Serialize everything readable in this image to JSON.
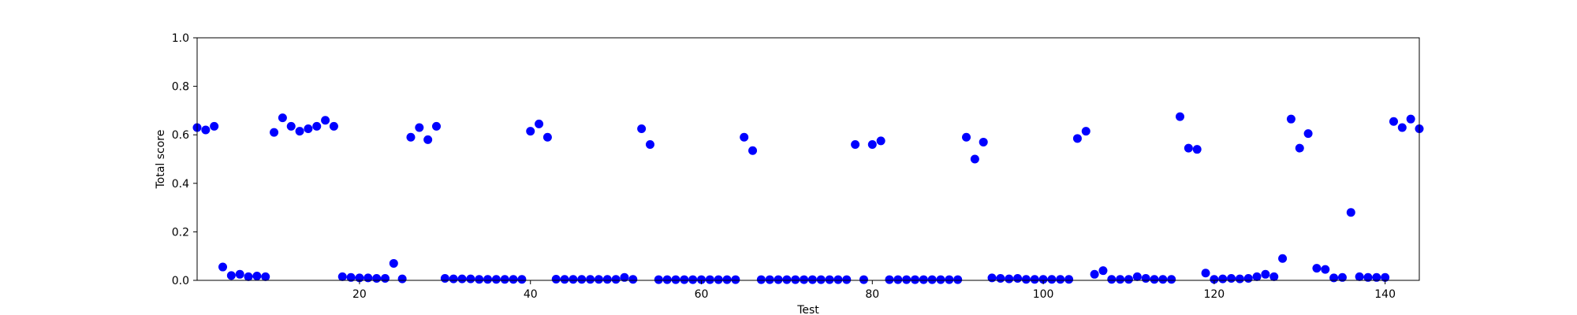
{
  "chart_data": {
    "type": "scatter",
    "title": "",
    "xlabel": "Test",
    "ylabel": "Total score",
    "xlim": [
      1,
      144
    ],
    "ylim": [
      0.0,
      1.0
    ],
    "xticks": [
      20,
      40,
      60,
      80,
      100,
      120,
      140
    ],
    "xtick_labels": [
      "20",
      "40",
      "60",
      "80",
      "100",
      "120",
      "140"
    ],
    "yticks": [
      0.0,
      0.2,
      0.4,
      0.6,
      0.8,
      1.0
    ],
    "ytick_labels": [
      "0.0",
      "0.2",
      "0.4",
      "0.6",
      "0.8",
      "1.0"
    ],
    "grid": false,
    "marker_color": "#0000ff",
    "series": [
      {
        "x": [
          1,
          2,
          3,
          4,
          5,
          6,
          7,
          8,
          9,
          10,
          11,
          12,
          13,
          14,
          15,
          16,
          17,
          18,
          19,
          20,
          21,
          22,
          23,
          24,
          25,
          26,
          27,
          28,
          29,
          30,
          31,
          32,
          33,
          34,
          35,
          36,
          37,
          38,
          39,
          40,
          41,
          42,
          43,
          44,
          45,
          46,
          47,
          48,
          49,
          50,
          51,
          52,
          53,
          54,
          55,
          56,
          57,
          58,
          59,
          60,
          61,
          62,
          63,
          64,
          65,
          66,
          67,
          68,
          69,
          70,
          71,
          72,
          73,
          74,
          75,
          76,
          77,
          78,
          79,
          80,
          81,
          82,
          83,
          84,
          85,
          86,
          87,
          88,
          89,
          90,
          91,
          92,
          93,
          94,
          95,
          96,
          97,
          98,
          99,
          100,
          101,
          102,
          103,
          104,
          105,
          106,
          107,
          108,
          109,
          110,
          111,
          112,
          113,
          114,
          115,
          116,
          117,
          118,
          119,
          120,
          121,
          122,
          123,
          124,
          125,
          126,
          127,
          128,
          129,
          130,
          131,
          132,
          133,
          134,
          135,
          136,
          137,
          138,
          139,
          140,
          141,
          142,
          143,
          144
        ],
        "y": [
          0.63,
          0.62,
          0.635,
          0.055,
          0.02,
          0.025,
          0.015,
          0.018,
          0.015,
          0.61,
          0.67,
          0.635,
          0.615,
          0.625,
          0.635,
          0.66,
          0.635,
          0.015,
          0.012,
          0.01,
          0.01,
          0.008,
          0.008,
          0.07,
          0.006,
          0.59,
          0.63,
          0.58,
          0.635,
          0.008,
          0.006,
          0.006,
          0.006,
          0.004,
          0.004,
          0.004,
          0.004,
          0.004,
          0.004,
          0.615,
          0.645,
          0.59,
          0.005,
          0.004,
          0.004,
          0.004,
          0.004,
          0.004,
          0.004,
          0.004,
          0.012,
          0.004,
          0.625,
          0.56,
          0.003,
          0.003,
          0.003,
          0.003,
          0.003,
          0.003,
          0.003,
          0.003,
          0.003,
          0.003,
          0.59,
          0.535,
          0.003,
          0.003,
          0.003,
          0.003,
          0.003,
          0.003,
          0.003,
          0.003,
          0.003,
          0.003,
          0.003,
          0.56,
          0.003,
          0.56,
          0.575,
          0.003,
          0.003,
          0.003,
          0.003,
          0.003,
          0.003,
          0.003,
          0.003,
          0.003,
          0.59,
          0.5,
          0.57,
          0.01,
          0.008,
          0.006,
          0.008,
          0.004,
          0.004,
          0.004,
          0.004,
          0.004,
          0.004,
          0.585,
          0.615,
          0.025,
          0.04,
          0.004,
          0.004,
          0.004,
          0.015,
          0.008,
          0.004,
          0.004,
          0.004,
          0.675,
          0.545,
          0.54,
          0.03,
          0.004,
          0.006,
          0.008,
          0.006,
          0.008,
          0.015,
          0.025,
          0.015,
          0.09,
          0.665,
          0.545,
          0.605,
          0.05,
          0.045,
          0.01,
          0.012,
          0.28,
          0.015,
          0.012,
          0.012,
          0.012,
          0.655,
          0.63,
          0.665,
          0.625
        ]
      }
    ]
  }
}
